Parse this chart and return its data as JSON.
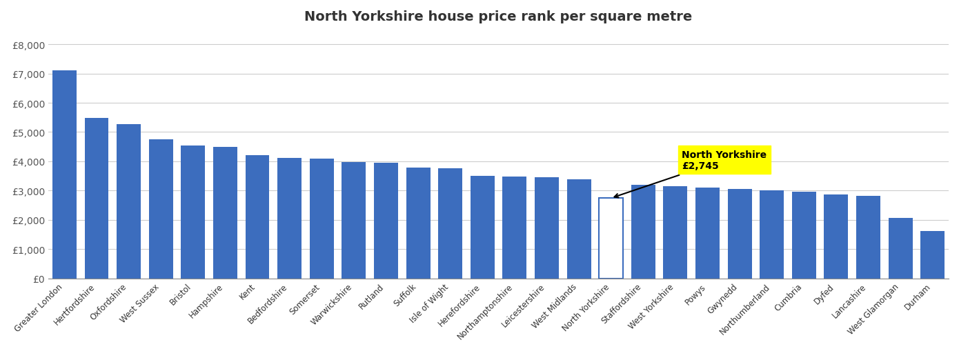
{
  "categories": [
    "Greater London",
    "Hertfordshire",
    "Oxfordshire",
    "West Sussex",
    "Bristol",
    "Hampshire",
    "Kent",
    "Bedfordshire",
    "Somerset",
    "Warwickshire",
    "Rutland",
    "Suffolk",
    "Isle of Wight",
    "Herefordshire",
    "Northamptonshire",
    "Leicestershire",
    "West Midlands",
    "North Yorkshire",
    "Staffordshire",
    "West Yorkshire",
    "Powys",
    "Gwynedd",
    "Northumberland",
    "Cumbria",
    "Dyfed",
    "Lancashire",
    "West Glamorgan",
    "Durham"
  ],
  "values": [
    7100,
    5480,
    5260,
    4750,
    4550,
    4490,
    4200,
    4120,
    4100,
    3980,
    3940,
    3780,
    3760,
    3510,
    3470,
    3450,
    3380,
    2745,
    3200,
    3150,
    3100,
    3050,
    3010,
    2970,
    2870,
    2810,
    2060,
    1620
  ],
  "highlight_index": 17,
  "bar_color": "#3c6dbe",
  "highlight_bar_color": "#ffffff",
  "highlight_outline_color": "#3c6dbe",
  "annotation_bg_color": "#ffff00",
  "annotation_text_color": "#000000",
  "annotation_text": "North Yorkshire\n£2,745",
  "title": "North Yorkshire house price rank per square metre",
  "ylim": [
    0,
    8500
  ],
  "yticks": [
    0,
    1000,
    2000,
    3000,
    4000,
    5000,
    6000,
    7000,
    8000
  ],
  "ytick_labels": [
    "£0",
    "£1,000",
    "£2,000",
    "£3,000",
    "£4,000",
    "£5,000",
    "£6,000",
    "£7,000",
    "£8,000"
  ],
  "background_color": "#ffffff",
  "grid_color": "#cccccc",
  "title_fontsize": 14,
  "tick_fontsize": 10
}
